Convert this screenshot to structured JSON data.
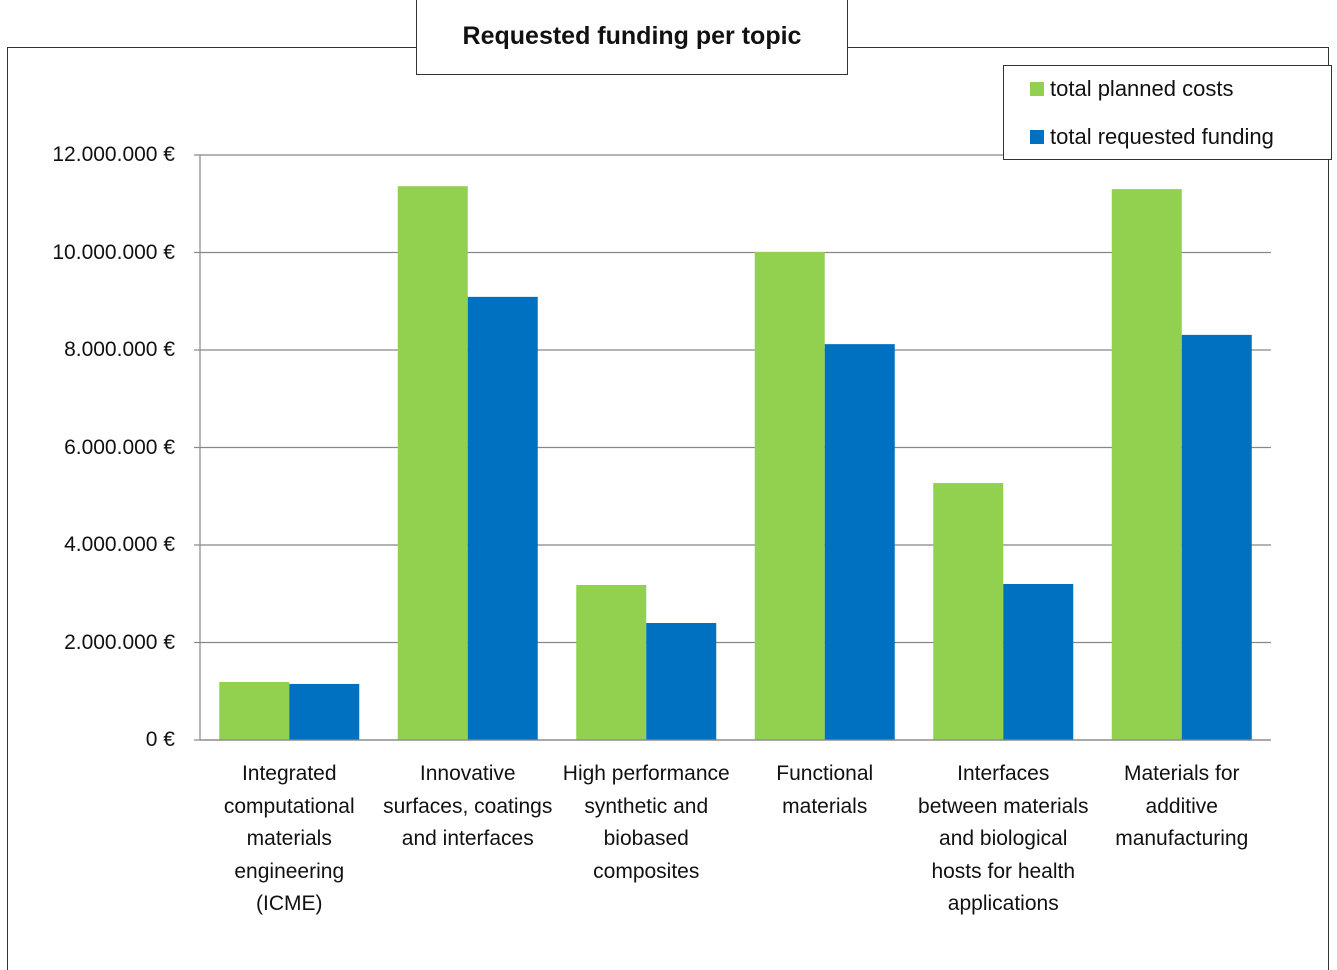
{
  "chart_data": {
    "type": "bar",
    "title": "Requested funding per topic",
    "categories": [
      "Integrated computational materials engineering (ICME)",
      "Innovative surfaces, coatings and interfaces",
      "High performance synthetic and biobased composites",
      "Functional materials",
      "Interfaces between materials and biological hosts for health applications",
      "Materials for additive manufacturing"
    ],
    "series": [
      {
        "name": "total planned costs",
        "color": "#92d050",
        "values": [
          1190000,
          11360000,
          3180000,
          10010000,
          5270000,
          11300000
        ]
      },
      {
        "name": "total requested funding",
        "color": "#0070c0",
        "values": [
          1150000,
          9090000,
          2400000,
          8120000,
          3200000,
          8310000
        ]
      }
    ],
    "ylim": [
      0,
      12000000
    ],
    "yticks": [
      {
        "value": 0,
        "label": "0 €"
      },
      {
        "value": 2000000,
        "label": "2.000.000 €"
      },
      {
        "value": 4000000,
        "label": "4.000.000 €"
      },
      {
        "value": 6000000,
        "label": "6.000.000 €"
      },
      {
        "value": 8000000,
        "label": "8.000.000 €"
      },
      {
        "value": 10000000,
        "label": "10.000.000 €"
      },
      {
        "value": 12000000,
        "label": "12.000.000 €"
      }
    ],
    "grid": true,
    "legend": "top-right"
  }
}
